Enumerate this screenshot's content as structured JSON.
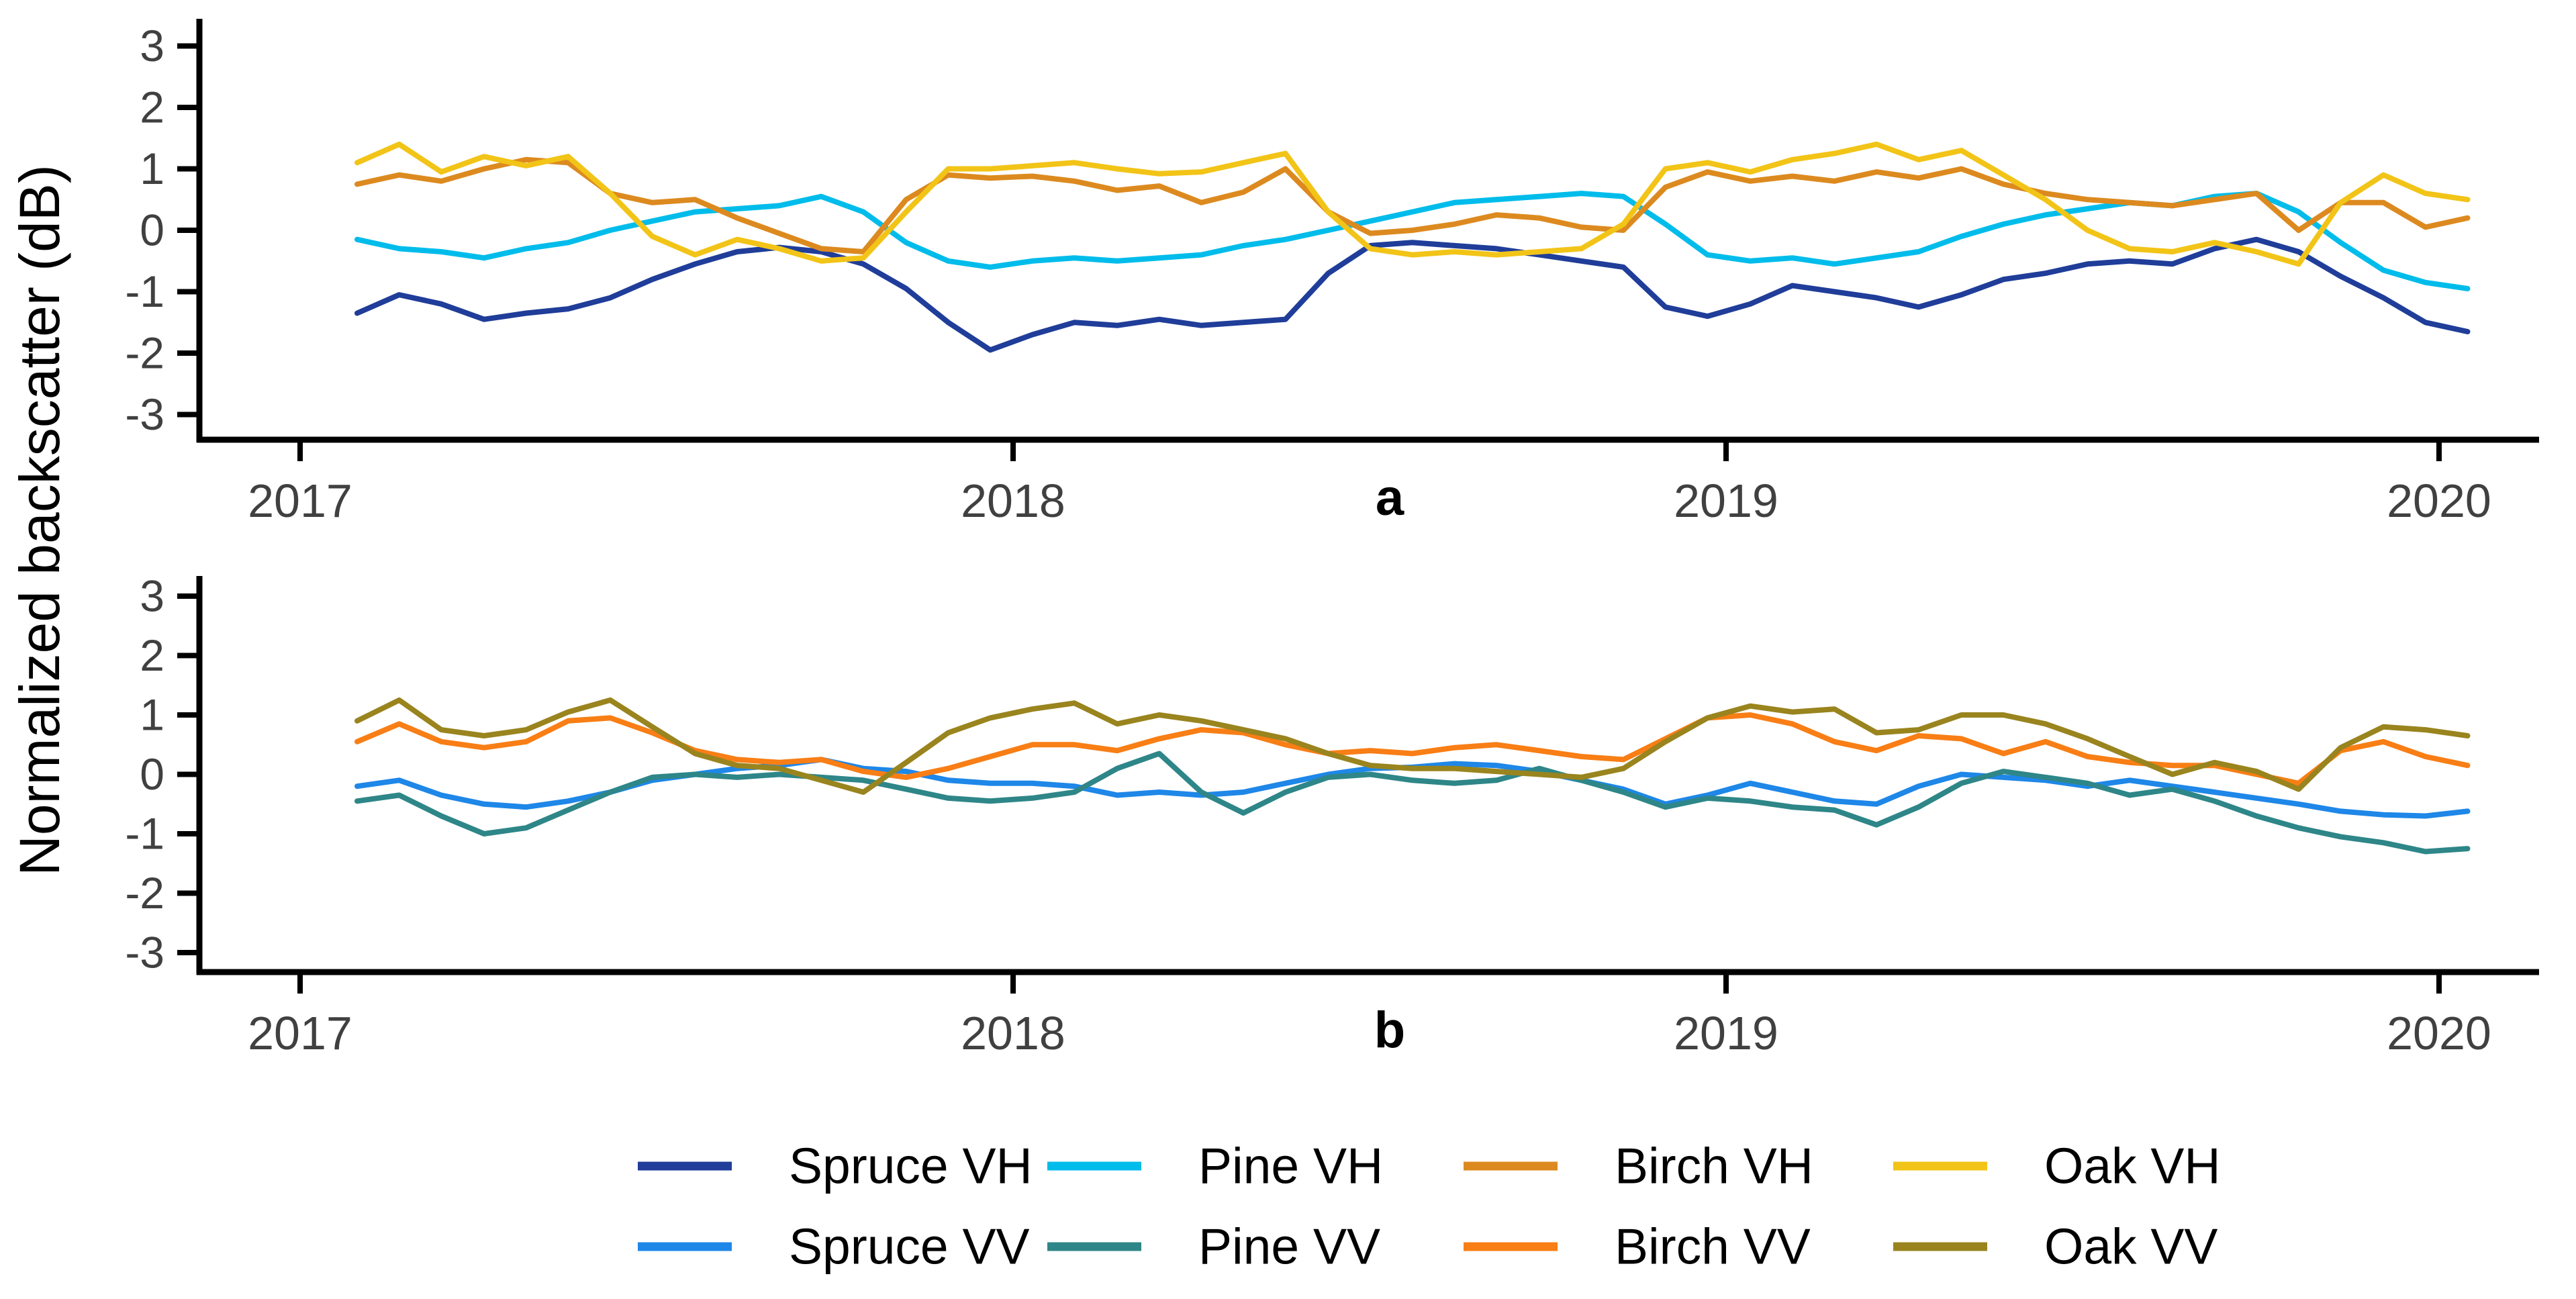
{
  "figure": {
    "y_axis_label": "Normalized backscatter (dB)"
  },
  "chart_data": [
    {
      "type": "line",
      "panel_label": "a",
      "title": "",
      "xlabel": "",
      "ylabel": "Normalized backscatter (dB)",
      "x_ticks": [
        2017,
        2018,
        2019,
        2020
      ],
      "y_ticks": [
        3,
        2,
        1,
        0,
        -1,
        -2,
        -3
      ],
      "ylim": [
        -3.4,
        3.4
      ],
      "xlim": [
        2016.86,
        2020.14
      ],
      "grid": "off",
      "x": [
        2017.08,
        2017.139,
        2017.198,
        2017.258,
        2017.317,
        2017.376,
        2017.435,
        2017.494,
        2017.554,
        2017.613,
        2017.672,
        2017.731,
        2017.79,
        2017.85,
        2017.909,
        2017.968,
        2018.027,
        2018.086,
        2018.146,
        2018.205,
        2018.264,
        2018.323,
        2018.382,
        2018.442,
        2018.501,
        2018.56,
        2018.619,
        2018.678,
        2018.738,
        2018.797,
        2018.856,
        2018.915,
        2018.974,
        2019.034,
        2019.093,
        2019.152,
        2019.211,
        2019.27,
        2019.33,
        2019.389,
        2019.448,
        2019.507,
        2019.566,
        2019.626,
        2019.685,
        2019.744,
        2019.803,
        2019.862,
        2019.922,
        2019.981,
        2020.04
      ],
      "series": [
        {
          "name": "Spruce VH",
          "color": "#1f3d99",
          "values": [
            -1.35,
            -1.05,
            -1.2,
            -1.45,
            -1.35,
            -1.28,
            -1.1,
            -0.8,
            -0.55,
            -0.35,
            -0.28,
            -0.35,
            -0.55,
            -0.95,
            -1.5,
            -1.95,
            -1.7,
            -1.5,
            -1.55,
            -1.45,
            -1.55,
            -1.5,
            -1.45,
            -0.7,
            -0.25,
            -0.2,
            -0.25,
            -0.3,
            -0.4,
            -0.5,
            -0.6,
            -1.25,
            -1.4,
            -1.2,
            -0.9,
            -1.0,
            -1.1,
            -1.25,
            -1.05,
            -0.8,
            -0.7,
            -0.55,
            -0.5,
            -0.55,
            -0.3,
            -0.15,
            -0.35,
            -0.75,
            -1.1,
            -1.5,
            -1.65
          ]
        },
        {
          "name": "Pine VH",
          "color": "#00bceb",
          "values": [
            -0.15,
            -0.3,
            -0.35,
            -0.45,
            -0.3,
            -0.2,
            0.0,
            0.15,
            0.3,
            0.35,
            0.4,
            0.55,
            0.3,
            -0.2,
            -0.5,
            -0.6,
            -0.5,
            -0.45,
            -0.5,
            -0.45,
            -0.4,
            -0.25,
            -0.15,
            0.0,
            0.15,
            0.3,
            0.45,
            0.5,
            0.55,
            0.6,
            0.55,
            0.1,
            -0.4,
            -0.5,
            -0.45,
            -0.55,
            -0.45,
            -0.35,
            -0.1,
            0.1,
            0.25,
            0.35,
            0.45,
            0.4,
            0.55,
            0.6,
            0.3,
            -0.2,
            -0.65,
            -0.85,
            -0.95
          ]
        },
        {
          "name": "Birch VH",
          "color": "#dc8a1f",
          "values": [
            0.75,
            0.9,
            0.8,
            1.0,
            1.15,
            1.1,
            0.6,
            0.45,
            0.5,
            0.2,
            -0.05,
            -0.3,
            -0.35,
            0.5,
            0.9,
            0.85,
            0.88,
            0.8,
            0.65,
            0.72,
            0.45,
            0.62,
            1.0,
            0.3,
            -0.05,
            0.0,
            0.1,
            0.25,
            0.2,
            0.05,
            0.0,
            0.7,
            0.95,
            0.8,
            0.88,
            0.8,
            0.95,
            0.85,
            1.0,
            0.75,
            0.6,
            0.5,
            0.45,
            0.4,
            0.5,
            0.6,
            0.0,
            0.45,
            0.45,
            0.05,
            0.2
          ]
        },
        {
          "name": "Oak VH",
          "color": "#f2c417",
          "values": [
            1.1,
            1.4,
            0.95,
            1.2,
            1.05,
            1.2,
            0.6,
            -0.1,
            -0.4,
            -0.15,
            -0.3,
            -0.5,
            -0.45,
            0.3,
            1.0,
            1.0,
            1.05,
            1.1,
            1.0,
            0.92,
            0.95,
            1.1,
            1.25,
            0.3,
            -0.3,
            -0.4,
            -0.35,
            -0.4,
            -0.35,
            -0.3,
            0.1,
            1.0,
            1.1,
            0.95,
            1.15,
            1.25,
            1.4,
            1.15,
            1.3,
            0.9,
            0.5,
            0.0,
            -0.3,
            -0.35,
            -0.2,
            -0.35,
            -0.55,
            0.45,
            0.9,
            0.6,
            0.5
          ]
        }
      ]
    },
    {
      "type": "line",
      "panel_label": "b",
      "title": "",
      "xlabel": "",
      "ylabel": "Normalized backscatter (dB)",
      "x_ticks": [
        2017,
        2018,
        2019,
        2020
      ],
      "y_ticks": [
        3,
        2,
        1,
        0,
        -1,
        -2,
        -3
      ],
      "ylim": [
        -3.4,
        3.4
      ],
      "xlim": [
        2016.86,
        2020.14
      ],
      "grid": "off",
      "x": [
        2017.08,
        2017.139,
        2017.198,
        2017.258,
        2017.317,
        2017.376,
        2017.435,
        2017.494,
        2017.554,
        2017.613,
        2017.672,
        2017.731,
        2017.79,
        2017.85,
        2017.909,
        2017.968,
        2018.027,
        2018.086,
        2018.146,
        2018.205,
        2018.264,
        2018.323,
        2018.382,
        2018.442,
        2018.501,
        2018.56,
        2018.619,
        2018.678,
        2018.738,
        2018.797,
        2018.856,
        2018.915,
        2018.974,
        2019.034,
        2019.093,
        2019.152,
        2019.211,
        2019.27,
        2019.33,
        2019.389,
        2019.448,
        2019.507,
        2019.566,
        2019.626,
        2019.685,
        2019.744,
        2019.803,
        2019.862,
        2019.922,
        2019.981,
        2020.04
      ],
      "series": [
        {
          "name": "Spruce VV",
          "color": "#1e87e8",
          "values": [
            -0.2,
            -0.1,
            -0.35,
            -0.5,
            -0.55,
            -0.45,
            -0.3,
            -0.1,
            0.0,
            0.1,
            0.15,
            0.25,
            0.1,
            0.05,
            -0.1,
            -0.15,
            -0.15,
            -0.2,
            -0.35,
            -0.3,
            -0.35,
            -0.3,
            -0.15,
            0.0,
            0.1,
            0.12,
            0.18,
            0.15,
            0.05,
            -0.1,
            -0.25,
            -0.5,
            -0.35,
            -0.15,
            -0.3,
            -0.45,
            -0.5,
            -0.2,
            0.0,
            -0.05,
            -0.1,
            -0.2,
            -0.1,
            -0.2,
            -0.3,
            -0.4,
            -0.5,
            -0.62,
            -0.68,
            -0.7,
            -0.62
          ]
        },
        {
          "name": "Pine VV",
          "color": "#2e8688",
          "values": [
            -0.45,
            -0.35,
            -0.7,
            -1.0,
            -0.9,
            -0.6,
            -0.3,
            -0.05,
            0.0,
            -0.05,
            0.0,
            -0.05,
            -0.1,
            -0.25,
            -0.4,
            -0.45,
            -0.4,
            -0.3,
            0.1,
            0.35,
            -0.3,
            -0.65,
            -0.3,
            -0.05,
            0.0,
            -0.1,
            -0.15,
            -0.1,
            0.1,
            -0.1,
            -0.3,
            -0.55,
            -0.4,
            -0.45,
            -0.55,
            -0.6,
            -0.85,
            -0.55,
            -0.15,
            0.05,
            -0.05,
            -0.15,
            -0.35,
            -0.25,
            -0.45,
            -0.7,
            -0.9,
            -1.05,
            -1.15,
            -1.3,
            -1.25
          ]
        },
        {
          "name": "Birch VV",
          "color": "#f87e15",
          "values": [
            0.55,
            0.85,
            0.55,
            0.45,
            0.55,
            0.9,
            0.95,
            0.7,
            0.4,
            0.25,
            0.2,
            0.25,
            0.05,
            -0.05,
            0.1,
            0.3,
            0.5,
            0.5,
            0.4,
            0.6,
            0.75,
            0.7,
            0.5,
            0.35,
            0.4,
            0.35,
            0.45,
            0.5,
            0.4,
            0.3,
            0.25,
            0.6,
            0.95,
            1.0,
            0.85,
            0.55,
            0.4,
            0.65,
            0.6,
            0.35,
            0.55,
            0.3,
            0.2,
            0.15,
            0.15,
            0.0,
            -0.15,
            0.4,
            0.55,
            0.3,
            0.15
          ]
        },
        {
          "name": "Oak VV",
          "color": "#99841e",
          "values": [
            0.9,
            1.25,
            0.75,
            0.65,
            0.75,
            1.05,
            1.25,
            0.8,
            0.35,
            0.15,
            0.1,
            -0.1,
            -0.3,
            0.2,
            0.7,
            0.95,
            1.1,
            1.2,
            0.85,
            1.0,
            0.9,
            0.75,
            0.6,
            0.35,
            0.15,
            0.1,
            0.1,
            0.05,
            0.0,
            -0.05,
            0.1,
            0.55,
            0.95,
            1.15,
            1.05,
            1.1,
            0.7,
            0.75,
            1.0,
            1.0,
            0.85,
            0.6,
            0.3,
            0.0,
            0.2,
            0.05,
            -0.25,
            0.45,
            0.8,
            0.75,
            0.65
          ]
        }
      ]
    }
  ],
  "legend": {
    "rows": [
      [
        {
          "label": "Spruce VH",
          "color": "#1f3d99"
        },
        {
          "label": "Pine VH",
          "color": "#00bceb"
        },
        {
          "label": "Birch VH",
          "color": "#dc8a1f"
        },
        {
          "label": "Oak VH",
          "color": "#f2c417"
        }
      ],
      [
        {
          "label": "Spruce VV",
          "color": "#1e87e8"
        },
        {
          "label": "Pine VV",
          "color": "#2e8688"
        },
        {
          "label": "Birch VV",
          "color": "#f87e15"
        },
        {
          "label": "Oak VV",
          "color": "#99841e"
        }
      ]
    ]
  }
}
